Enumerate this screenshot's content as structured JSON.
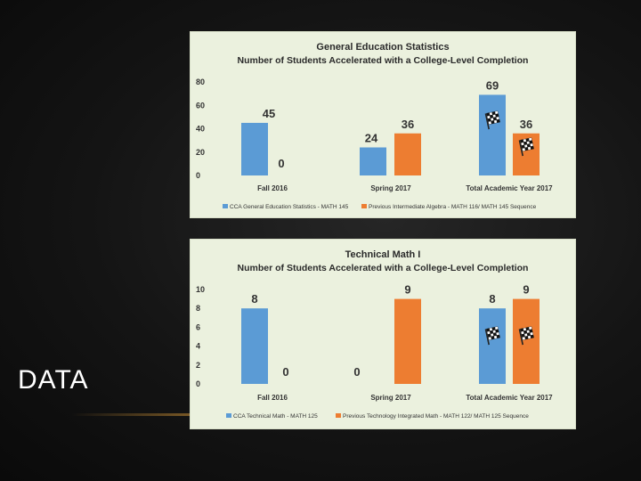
{
  "slide": {
    "title": "DATA"
  },
  "colors": {
    "blue": "#5b9bd5",
    "orange": "#ed7d31",
    "panel": "#ebf1de"
  },
  "chart_data": [
    {
      "type": "bar",
      "title": "General Education Statistics",
      "subtitle": "Number of Students Accelerated with a College-Level Completion",
      "categories": [
        "Fall 2016",
        "Spring 2017",
        "Total Academic Year 2017"
      ],
      "series": [
        {
          "name": "CCA General Education Statistics - MATH 145",
          "values": [
            45,
            24,
            69
          ]
        },
        {
          "name": "Previous Intermediate Algebra - MATH 116/ MATH 145 Sequence",
          "values": [
            0,
            36,
            36
          ]
        }
      ],
      "yticks": [
        0,
        20,
        40,
        60,
        80
      ],
      "ylim": [
        0,
        80
      ],
      "legend": "bottom",
      "annotations": [
        "checkered-flag-icon",
        "checkered-flag-icon"
      ]
    },
    {
      "type": "bar",
      "title": "Technical Math I",
      "subtitle": "Number of Students Accelerated with a College-Level Completion",
      "categories": [
        "Fall 2016",
        "Spring 2017",
        "Total Academic Year 2017"
      ],
      "series": [
        {
          "name": "CCA Technical Math - MATH 125",
          "values": [
            8,
            0,
            8
          ]
        },
        {
          "name": "Previous Technology Integrated Math - MATH 122/ MATH 125 Sequence",
          "values": [
            0,
            9,
            9
          ]
        }
      ],
      "yticks": [
        0,
        2,
        4,
        6,
        8,
        10
      ],
      "ylim": [
        0,
        10
      ],
      "legend": "bottom",
      "annotations": [
        "checkered-flag-icon",
        "checkered-flag-icon"
      ]
    }
  ]
}
